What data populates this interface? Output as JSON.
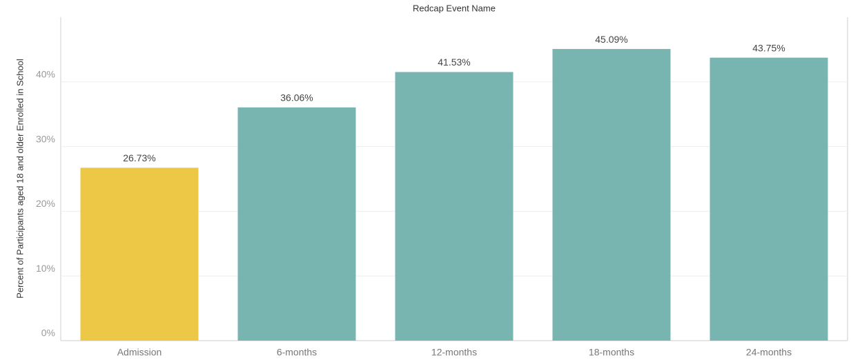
{
  "chart_data": {
    "type": "bar",
    "title": "Redcap Event Name",
    "y_label": "Percent of Participants aged 18 and older Enrolled in School",
    "categories": [
      "Admission",
      "6-months",
      "12-months",
      "18-months",
      "24-months"
    ],
    "values": [
      26.73,
      36.06,
      41.53,
      45.09,
      43.75
    ],
    "value_labels": [
      "26.73%",
      "36.06%",
      "41.53%",
      "45.09%",
      "43.75%"
    ],
    "colors": [
      "#ecc846",
      "#79b5b0",
      "#79b5b0",
      "#79b5b0",
      "#79b5b0"
    ],
    "ylim": [
      0,
      50
    ],
    "yticks": [
      {
        "value": 0,
        "label": "0%"
      },
      {
        "value": 10,
        "label": "10%"
      },
      {
        "value": 20,
        "label": "20%"
      },
      {
        "value": 30,
        "label": "30%"
      },
      {
        "value": 40,
        "label": "40%"
      }
    ],
    "grid": true
  }
}
